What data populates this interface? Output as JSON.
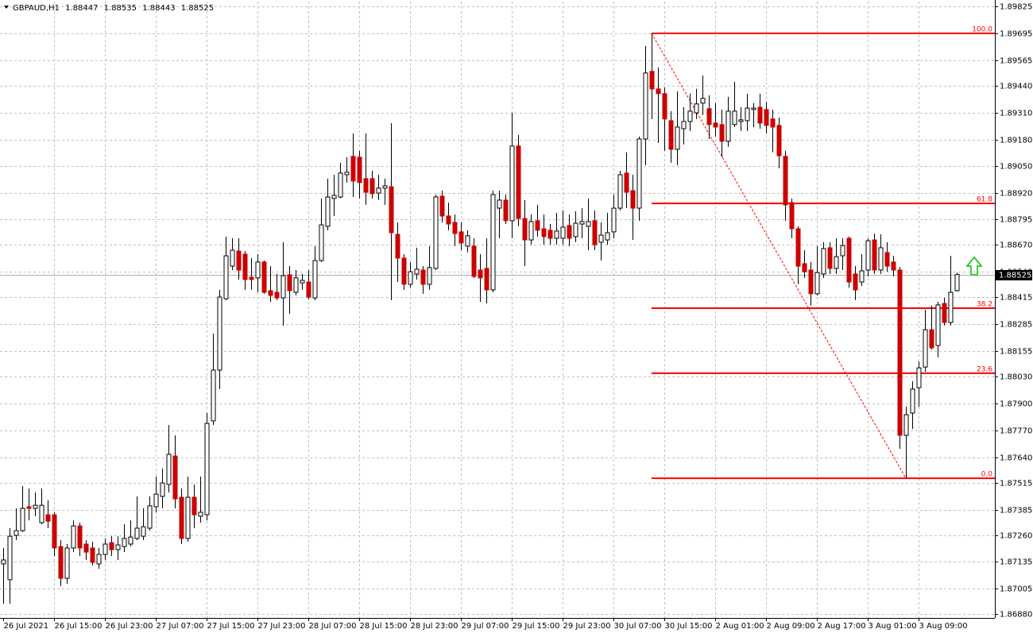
{
  "chart_data": {
    "type": "candlestick",
    "symbol": "GBPAUD,H1",
    "up_color": "#ffffff",
    "down_color": "#cc0000",
    "grid": true,
    "ylim": [
      1.86861,
      1.89848
    ],
    "yticks": [
      1.89825,
      1.89695,
      1.89565,
      {
        "value": 1.8944,
        "label": "1.89440"
      },
      {
        "value": 1.8931,
        "label": "1.89310"
      },
      {
        "value": 1.8918,
        "label": "1.89180"
      },
      {
        "value": 1.8905,
        "label": "1.89050"
      },
      {
        "value": 1.8892,
        "label": "1.88920"
      },
      1.88795,
      {
        "value": 1.8867,
        "label": "1.88670"
      },
      {
        "value": 1.8854,
        "label": "1.88540"
      },
      1.88415,
      1.88285,
      1.88155,
      {
        "value": 1.8803,
        "label": "1.88030"
      },
      {
        "value": 1.879,
        "label": "1.87900"
      },
      {
        "value": 1.8777,
        "label": "1.87770"
      },
      {
        "value": 1.8764,
        "label": "1.87640"
      },
      1.87515,
      1.87385,
      {
        "value": 1.8726,
        "label": "1.87260"
      },
      1.87135,
      1.87005,
      {
        "value": 1.8688,
        "label": "1.86880"
      }
    ],
    "categories": [
      "26 Jul 2021",
      null,
      null,
      null,
      null,
      null,
      null,
      null,
      "26 Jul 15:00",
      null,
      null,
      null,
      null,
      null,
      null,
      null,
      "26 Jul 23:00",
      null,
      null,
      null,
      null,
      null,
      null,
      null,
      "27 Jul 07:00",
      null,
      null,
      null,
      null,
      null,
      null,
      null,
      "27 Jul 15:00",
      null,
      null,
      null,
      null,
      null,
      null,
      null,
      "27 Jul 23:00",
      null,
      null,
      null,
      null,
      null,
      null,
      null,
      "28 Jul 07:00",
      null,
      null,
      null,
      null,
      null,
      null,
      null,
      "28 Jul 15:00",
      null,
      null,
      null,
      null,
      null,
      null,
      null,
      "28 Jul 23:00",
      null,
      null,
      null,
      null,
      null,
      null,
      null,
      "29 Jul 07:00",
      null,
      null,
      null,
      null,
      null,
      null,
      null,
      "29 Jul 15:00",
      null,
      null,
      null,
      null,
      null,
      null,
      null,
      "29 Jul 23:00",
      null,
      null,
      null,
      null,
      null,
      null,
      null,
      "30 Jul 07:00",
      null,
      null,
      null,
      null,
      null,
      null,
      null,
      "30 Jul 15:00",
      null,
      null,
      null,
      null,
      null,
      null,
      null,
      "2 Aug 01:00",
      null,
      null,
      null,
      null,
      null,
      null,
      null,
      "2 Aug 09:00",
      null,
      null,
      null,
      null,
      null,
      null,
      null,
      "2 Aug 17:00",
      null,
      null,
      null,
      null,
      null,
      null,
      null,
      "3 Aug 01:00",
      null,
      null,
      null,
      null,
      null,
      null,
      null,
      "3 Aug 09:00",
      null,
      null,
      null,
      null,
      null,
      null
    ],
    "open": [
      1.87123,
      1.87046,
      1.87261,
      1.87284,
      1.874,
      1.87392,
      1.87323,
      1.87361,
      1.87361,
      1.87207,
      1.87053,
      1.872,
      1.87307,
      1.87219,
      1.872,
      1.87123,
      1.87169,
      1.87226,
      1.87192,
      1.87207,
      1.87219,
      1.87246,
      1.87257,
      1.87296,
      1.874,
      1.8745,
      1.87508,
      1.87646,
      1.87446,
      1.87246,
      1.87446,
      1.87354,
      1.87361,
      1.87816,
      1.88062,
      1.88408,
      1.88566,
      1.88639,
      1.88624,
      1.88512,
      1.88509,
      1.88586,
      1.88447,
      1.88439,
      1.88412,
      1.88524,
      1.88439,
      1.88485,
      1.88489,
      1.88412,
      1.88593,
      1.88759,
      1.88894,
      1.88901,
      1.89009,
      1.89098,
      1.89094,
      1.8899,
      1.8899,
      1.8892,
      1.88944,
      1.88951,
      1.8872,
      1.88605,
      1.88478,
      1.88528,
      1.88547,
      1.88478,
      1.88555,
      1.88905,
      1.88809,
      1.88778,
      1.88732,
      1.88663,
      1.88663,
      1.88547,
      1.88555,
      1.88451,
      1.88847,
      1.88886,
      1.88786,
      1.89148,
      1.88797,
      1.88693,
      1.88786,
      1.88747,
      1.8874,
      1.88701,
      1.88701,
      1.88763,
      1.88709,
      1.8877,
      1.88759,
      1.88786,
      1.88682,
      1.88693,
      1.88732,
      1.88847,
      1.89017,
      1.88932,
      1.88847,
      1.89182,
      1.8951,
      1.89425,
      1.89402,
      1.89271,
      1.89132,
      1.89232,
      1.89267,
      1.89309,
      1.89356,
      1.89329,
      1.89259,
      1.89252,
      1.89171,
      1.89252,
      1.89267,
      1.89271,
      1.89325,
      1.89336,
      1.89325,
      1.89279,
      1.89248,
      1.89098,
      1.88874,
      1.88747,
      1.88578,
      1.88547,
      1.88432,
      1.88528,
      1.88655,
      1.88555,
      1.88616,
      1.88701,
      1.88528,
      1.88489,
      1.88547,
      1.88693,
      1.88547,
      1.88632,
      1.88586,
      1.88547,
      1.87746,
      1.87854,
      1.87977,
      1.88077,
      1.88258,
      1.88181,
      1.88385,
      1.88293,
      1.88447
    ],
    "high": [
      1.872,
      1.87296,
      1.87392,
      1.875,
      1.87488,
      1.87469,
      1.87488,
      1.87431,
      1.87373,
      1.87238,
      1.87219,
      1.87334,
      1.87323,
      1.87238,
      1.8723,
      1.872,
      1.87246,
      1.87257,
      1.87257,
      1.87315,
      1.87334,
      1.8745,
      1.87392,
      1.8745,
      1.87546,
      1.87585,
      1.87796,
      1.87746,
      1.87488,
      1.87546,
      1.87508,
      1.87546,
      1.87854,
      1.88239,
      1.88451,
      1.88709,
      1.88701,
      1.88701,
      1.88639,
      1.88605,
      1.88624,
      1.88593,
      1.88566,
      1.88528,
      1.88682,
      1.88566,
      1.88547,
      1.88528,
      1.88547,
      1.88663,
      1.88894,
      1.8899,
      1.89009,
      1.89067,
      1.89094,
      1.89209,
      1.89125,
      1.89209,
      1.89028,
      1.89009,
      1.8899,
      1.89259,
      1.88778,
      1.88624,
      1.88586,
      1.88655,
      1.88566,
      1.88663,
      1.88913,
      1.88932,
      1.88874,
      1.88817,
      1.88778,
      1.8874,
      1.88701,
      1.88624,
      1.88701,
      1.88932,
      1.88932,
      1.88913,
      1.89309,
      1.89202,
      1.88886,
      1.88817,
      1.88863,
      1.88817,
      1.8877,
      1.88824,
      1.88836,
      1.88817,
      1.88832,
      1.88847,
      1.88894,
      1.88836,
      1.88778,
      1.88824,
      1.88913,
      1.89028,
      1.89117,
      1.89009,
      1.89194,
      1.89633,
      1.89694,
      1.89529,
      1.89433,
      1.89317,
      1.89413,
      1.89336,
      1.89402,
      1.89425,
      1.8949,
      1.89394,
      1.89356,
      1.89325,
      1.89386,
      1.89459,
      1.89336,
      1.89402,
      1.89356,
      1.89402,
      1.89363,
      1.89325,
      1.89286,
      1.89125,
      1.88894,
      1.88759,
      1.88643,
      1.88586,
      1.88663,
      1.88682,
      1.88682,
      1.88701,
      1.88701,
      1.88709,
      1.88566,
      1.88624,
      1.88701,
      1.88724,
      1.8872,
      1.88682,
      1.88616,
      1.88562,
      1.87885,
      1.88008,
      1.88104,
      1.88355,
      1.88374,
      1.88393,
      1.88412,
      1.88616,
      1.88535
    ],
    "low": [
      1.8693,
      1.8693,
      1.87238,
      1.87277,
      1.87334,
      1.87354,
      1.87315,
      1.87296,
      1.87161,
      1.87015,
      1.87026,
      1.8718,
      1.87161,
      1.87142,
      1.87115,
      1.87099,
      1.87142,
      1.87161,
      1.87142,
      1.8718,
      1.87207,
      1.87238,
      1.87238,
      1.87284,
      1.87373,
      1.87392,
      1.87469,
      1.87392,
      1.87219,
      1.8723,
      1.87296,
      1.87323,
      1.87334,
      1.87796,
      1.8797,
      1.88401,
      1.88547,
      1.88501,
      1.88451,
      1.88451,
      1.88439,
      1.88432,
      1.88393,
      1.88401,
      1.88278,
      1.88335,
      1.88424,
      1.88451,
      1.88405,
      1.88401,
      1.88586,
      1.8874,
      1.88809,
      1.88894,
      1.88971,
      1.88901,
      1.88894,
      1.88863,
      1.88894,
      1.88886,
      1.88863,
      1.88401,
      1.88489,
      1.88451,
      1.88462,
      1.88501,
      1.88432,
      1.88451,
      1.88547,
      1.88778,
      1.8874,
      1.88663,
      1.88643,
      1.88632,
      1.88509,
      1.88393,
      1.88385,
      1.88439,
      1.88701,
      1.8877,
      1.88701,
      1.88759,
      1.88566,
      1.8867,
      1.88709,
      1.8867,
      1.8867,
      1.8867,
      1.8867,
      1.88663,
      1.88682,
      1.88701,
      1.88643,
      1.88643,
      1.88593,
      1.8867,
      1.88701,
      1.88836,
      1.88847,
      1.88693,
      1.88786,
      1.89055,
      1.89279,
      1.89163,
      1.89125,
      1.89067,
      1.89055,
      1.89155,
      1.89221,
      1.89279,
      1.89298,
      1.89182,
      1.89194,
      1.89094,
      1.89144,
      1.8924,
      1.89221,
      1.89221,
      1.8924,
      1.89232,
      1.89209,
      1.89117,
      1.8904,
      1.88786,
      1.88701,
      1.88478,
      1.88509,
      1.88374,
      1.88424,
      1.88509,
      1.88528,
      1.88528,
      1.88547,
      1.88462,
      1.88401,
      1.8847,
      1.88516,
      1.88528,
      1.88528,
      1.88539,
      1.88516,
      1.87681,
      1.87538,
      1.87777,
      1.87885,
      1.88054,
      1.88162,
      1.88124,
      1.88278,
      1.88278,
      1.88443
    ],
    "close": [
      1.87142,
      1.87257,
      1.87284,
      1.87392,
      1.87392,
      1.87407,
      1.87407,
      1.8733,
      1.872,
      1.87053,
      1.872,
      1.87307,
      1.872,
      1.8718,
      1.8713,
      1.87169,
      1.87219,
      1.87192,
      1.87215,
      1.87246,
      1.87253,
      1.87296,
      1.87303,
      1.87404,
      1.87461,
      1.87515,
      1.87654,
      1.87438,
      1.87246,
      1.87446,
      1.87361,
      1.87373,
      1.87804,
      1.88062,
      1.88416,
      1.88616,
      1.88643,
      1.88547,
      1.88501,
      1.88501,
      1.88586,
      1.88439,
      1.88424,
      1.88412,
      1.8852,
      1.88447,
      1.88509,
      1.88497,
      1.88416,
      1.88593,
      1.88766,
      1.88901,
      1.88909,
      1.89017,
      1.89021,
      1.88978,
      1.88971,
      1.88924,
      1.88917,
      1.88944,
      1.88955,
      1.88728,
      1.88605,
      1.88478,
      1.88539,
      1.88551,
      1.88478,
      1.88559,
      1.88901,
      1.88809,
      1.8877,
      1.88724,
      1.88678,
      1.88713,
      1.88516,
      1.88509,
      1.88451,
      1.88913,
      1.88886,
      1.88786,
      1.89148,
      1.88797,
      1.88693,
      1.88782,
      1.8874,
      1.88709,
      1.88701,
      1.88736,
      1.88755,
      1.88701,
      1.88774,
      1.88782,
      1.88782,
      1.8867,
      1.88716,
      1.88728,
      1.88847,
      1.89009,
      1.88924,
      1.88847,
      1.89182,
      1.89502,
      1.89425,
      1.89402,
      1.89279,
      1.89132,
      1.8924,
      1.89267,
      1.89317,
      1.89352,
      1.89379,
      1.89252,
      1.8924,
      1.89171,
      1.89317,
      1.89317,
      1.89275,
      1.89332,
      1.89332,
      1.89259,
      1.89248,
      1.8924,
      1.89101,
      1.88863,
      1.88747,
      1.88566,
      1.88539,
      1.88432,
      1.88535,
      1.88651,
      1.88555,
      1.88612,
      1.88666,
      1.88489,
      1.88451,
      1.88543,
      1.88689,
      1.88547,
      1.88655,
      1.88566,
      1.88547,
      1.87746,
      1.87846,
      1.8797,
      1.88073,
      1.88258,
      1.8817,
      1.88378,
      1.88293,
      1.88439,
      1.88525
    ],
    "fibonacci": {
      "color": "#ff0000",
      "levels": [
        {
          "label": "100.0",
          "value": 1.89694
        },
        {
          "label": "61.8",
          "value": 1.8887
        },
        {
          "label": "38.2",
          "value": 1.88362
        },
        {
          "label": "23.6",
          "value": 1.88047
        },
        {
          "label": "0.0",
          "value": 1.87538
        }
      ]
    }
  }
}
